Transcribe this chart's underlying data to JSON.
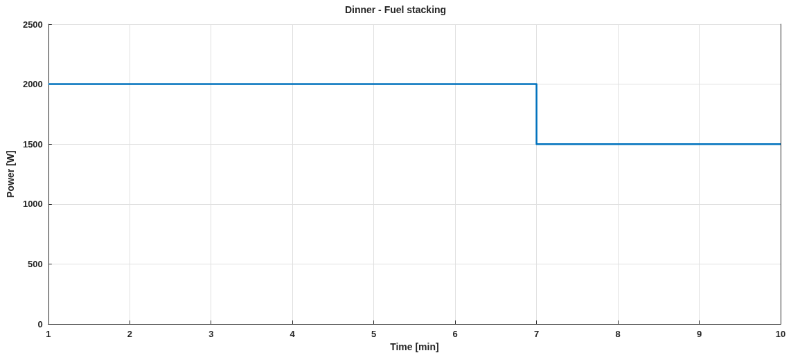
{
  "chart_data": {
    "type": "step",
    "title": "Dinner - Fuel stacking",
    "xlabel": "Time [min]",
    "ylabel": "Power [W]",
    "x": [
      1,
      7,
      10
    ],
    "series": [
      {
        "color": "#0072bd",
        "values": [
          2000,
          1500,
          1500
        ]
      }
    ],
    "xlim": [
      1,
      10
    ],
    "xticks": [
      1,
      2,
      3,
      4,
      5,
      6,
      7,
      8,
      9,
      10
    ],
    "ylim": [
      0,
      2500
    ],
    "yticks": [
      0,
      500,
      1000,
      1500,
      2000,
      2500
    ],
    "grid": true,
    "legend": false,
    "marker": "none",
    "line_style": "solid"
  }
}
